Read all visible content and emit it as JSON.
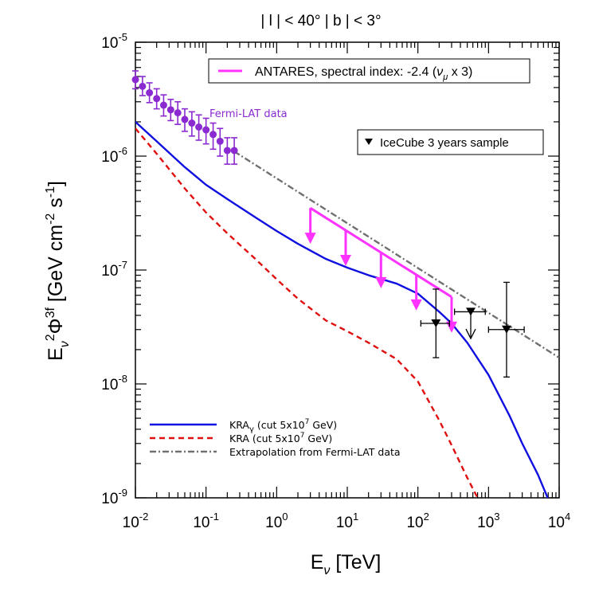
{
  "chart_data": {
    "type": "line",
    "title": "| l | < 40°   | b | < 3°",
    "xlabel": "E",
    "xlabel_sub": "ν",
    "xlabel_unit": " [TeV]",
    "ylabel": {
      "E": "E",
      "sub": "ν",
      "exp2": "2",
      "phi": "Φ",
      "sup3f": "3f",
      "unit_open": " [GeV cm",
      "exp_m2": "-2",
      "s": " s",
      "exp_m1": "-1",
      "unit_close": "]"
    },
    "x_scale": "log",
    "y_scale": "log",
    "xlim": [
      0.01,
      10000
    ],
    "ylim": [
      1e-09,
      1e-05
    ],
    "x_ticks": [
      {
        "value": 0.01,
        "base": "10",
        "exp": "-2"
      },
      {
        "value": 0.1,
        "base": "10",
        "exp": "-1"
      },
      {
        "value": 1,
        "base": "10",
        "exp": "0"
      },
      {
        "value": 10,
        "base": "10",
        "exp": "1"
      },
      {
        "value": 100,
        "base": "10",
        "exp": "2"
      },
      {
        "value": 1000,
        "base": "10",
        "exp": "3"
      },
      {
        "value": 10000,
        "base": "10",
        "exp": "4"
      }
    ],
    "y_ticks": [
      {
        "value": 1e-09,
        "base": "10",
        "exp": "-9"
      },
      {
        "value": 1e-08,
        "base": "10",
        "exp": "-8"
      },
      {
        "value": 1e-07,
        "base": "10",
        "exp": "-7"
      },
      {
        "value": 1e-06,
        "base": "10",
        "exp": "-6"
      },
      {
        "value": 1e-05,
        "base": "10",
        "exp": "-5"
      }
    ],
    "series": [
      {
        "name": "KRA_gamma (cut 5x10^7 GeV)",
        "style": "solid",
        "color": "#1010e0",
        "x": [
          0.01,
          0.02,
          0.05,
          0.1,
          0.2,
          0.5,
          1,
          2,
          5,
          10,
          20,
          50,
          100,
          200,
          300,
          500,
          1000,
          2000,
          3000,
          5000,
          8000
        ],
        "y": [
          2e-06,
          1.35e-06,
          8e-07,
          5.6e-07,
          4.2e-07,
          2.9e-07,
          2.2e-07,
          1.7e-07,
          1.25e-07,
          1.05e-07,
          9e-08,
          7.6e-08,
          6.2e-08,
          4.3e-08,
          3.4e-08,
          2.3e-08,
          1.2e-08,
          5.2e-09,
          3e-09,
          1.6e-09,
          8e-10
        ]
      },
      {
        "name": "KRA (cut 5x10^7 GeV)",
        "style": "dashed",
        "color": "#e01010",
        "x": [
          0.01,
          0.02,
          0.05,
          0.1,
          0.2,
          0.5,
          1,
          2,
          5,
          10,
          20,
          50,
          100,
          200,
          300,
          500,
          800
        ],
        "y": [
          1.75e-06,
          1.05e-06,
          5.2e-07,
          3.2e-07,
          2.1e-07,
          1.25e-07,
          8.3e-08,
          5.6e-08,
          3.6e-08,
          2.9e-08,
          2.3e-08,
          1.65e-08,
          1.05e-08,
          4.8e-09,
          2.9e-09,
          1.5e-09,
          8.5e-10
        ]
      },
      {
        "name": "Extrapolation from Fermi-LAT data",
        "style": "dashdot",
        "color": "#707070",
        "x": [
          0.25,
          10000
        ],
        "y": [
          1.1e-06,
          1.7e-08
        ]
      }
    ],
    "fermi_lat": {
      "label": "Fermi-LAT data",
      "color": "#8a2ad0",
      "x": [
        0.01,
        0.0126,
        0.0158,
        0.02,
        0.0251,
        0.0316,
        0.0398,
        0.05,
        0.063,
        0.079,
        0.1,
        0.126,
        0.158,
        0.2,
        0.251
      ],
      "y": [
        4.7e-06,
        4.1e-06,
        3.6e-06,
        3.2e-06,
        2.8e-06,
        2.55e-06,
        2.4e-06,
        2.1e-06,
        1.95e-06,
        1.8e-06,
        1.7e-06,
        1.55e-06,
        1.35e-06,
        1.12e-06,
        1.12e-06
      ],
      "y_low": [
        3.9e-06,
        3.4e-06,
        2.95e-06,
        2.6e-06,
        2.25e-06,
        2.05e-06,
        1.9e-06,
        1.65e-06,
        1.5e-06,
        1.38e-06,
        1.28e-06,
        1.15e-06,
        1e-06,
        8.5e-07,
        8.5e-07
      ],
      "y_high": [
        5.6e-06,
        5e-06,
        4.4e-06,
        3.9e-06,
        3.45e-06,
        3.15e-06,
        3e-06,
        2.6e-06,
        2.45e-06,
        2.3e-06,
        2.15e-06,
        1.95e-06,
        1.75e-06,
        1.45e-06,
        1.45e-06
      ]
    },
    "antares": {
      "label": "ANTARES, spectral index: -2.4 (",
      "label_nu": "ν",
      "label_sub": "μ",
      "label_tail": " x 3)",
      "color": "#ff33ff",
      "x": [
        3,
        300
      ],
      "y": [
        3.5e-07,
        5.8e-08
      ],
      "arrow_x": [
        3,
        9.49,
        30,
        94.9,
        300
      ],
      "arrow_length_decades": 0.3
    },
    "icecube": {
      "label": "IceCube 3 years sample",
      "points": [
        {
          "x": 180,
          "y": 3.4e-08,
          "x_low": 110,
          "x_high": 280,
          "y_low": 1.7e-08,
          "y_high": 6.8e-08,
          "upper_limit": false
        },
        {
          "x": 560,
          "y": 4.3e-08,
          "x_low": 330,
          "x_high": 900,
          "upper_limit": true,
          "arrow_to": 2.5e-08
        },
        {
          "x": 1800,
          "y": 3e-08,
          "x_low": 1000,
          "x_high": 3200,
          "y_low": 1.15e-08,
          "y_high": 7.8e-08,
          "upper_limit": false
        }
      ]
    },
    "legend_bottom": [
      {
        "label": "KRA",
        "sub": "γ",
        "rest": " (cut 5x10",
        "exp": "7",
        "tail": " GeV)",
        "style": "solid",
        "color": "#1010e0"
      },
      {
        "label": "KRA",
        "sub": "",
        "rest": " (cut 5x10",
        "exp": "7",
        "tail": " GeV)",
        "style": "dashed",
        "color": "#e01010"
      },
      {
        "label": "Extrapolation from Fermi-LAT data",
        "sub": "",
        "rest": "",
        "exp": "",
        "tail": "",
        "style": "dashdot",
        "color": "#707070"
      }
    ]
  }
}
